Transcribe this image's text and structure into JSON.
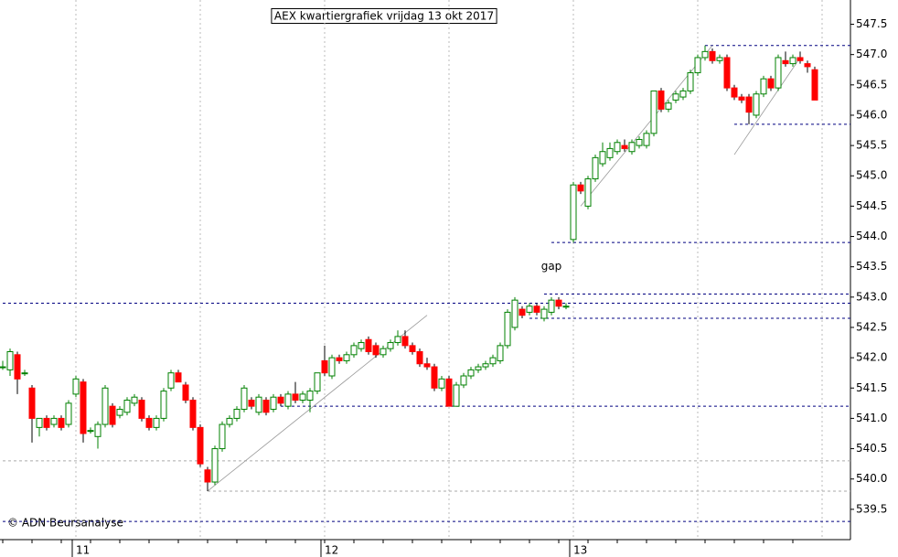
{
  "chart_data": {
    "type": "candlestick",
    "title": "AEX kwartiergrafiek vrijdag 13 okt 2017",
    "credit": "© ADN Beursanalyse",
    "annotations": [
      {
        "text": "gap",
        "x": 75,
        "y": 543.5
      }
    ],
    "up_color": "#008000",
    "down_color": "#ff0000",
    "categories": [
      null,
      null,
      null,
      null,
      null,
      null,
      null,
      null,
      null,
      null,
      "11",
      null,
      null,
      null,
      null,
      null,
      null,
      null,
      null,
      null,
      null,
      null,
      null,
      null,
      null,
      null,
      null,
      null,
      null,
      null,
      null,
      null,
      null,
      null,
      null,
      null,
      null,
      null,
      null,
      null,
      null,
      null,
      null,
      null,
      "12",
      null,
      null,
      null,
      null,
      null,
      null,
      null,
      null,
      null,
      null,
      null,
      null,
      null,
      null,
      null,
      null,
      null,
      null,
      null,
      null,
      null,
      null,
      null,
      null,
      null,
      null,
      null,
      null,
      null,
      null,
      null,
      null,
      null,
      "13",
      null,
      null,
      null,
      null,
      null,
      null,
      null,
      null,
      null,
      null,
      null,
      null,
      null,
      null,
      null,
      null,
      null,
      null,
      null,
      null,
      null,
      null,
      null,
      null,
      null,
      null,
      null,
      null,
      null,
      null,
      null,
      null,
      null
    ],
    "candles": [
      [
        541.85,
        541.95,
        541.8,
        541.85
      ],
      [
        541.8,
        542.15,
        541.7,
        542.1
      ],
      [
        542.05,
        542.1,
        541.4,
        541.65
      ],
      [
        541.75,
        541.8,
        541.7,
        541.75
      ],
      [
        541.5,
        541.55,
        540.6,
        541.0
      ],
      [
        540.85,
        541.0,
        540.7,
        541.0
      ],
      [
        541.0,
        541.05,
        540.8,
        540.85
      ],
      [
        540.9,
        541.05,
        540.85,
        541.0
      ],
      [
        541.0,
        541.05,
        540.8,
        540.85
      ],
      [
        540.9,
        541.3,
        540.85,
        541.25
      ],
      [
        541.4,
        541.7,
        541.35,
        541.65
      ],
      [
        541.6,
        541.65,
        540.6,
        540.75
      ],
      [
        540.8,
        540.85,
        540.75,
        540.8
      ],
      [
        540.7,
        540.95,
        540.5,
        540.9
      ],
      [
        540.9,
        541.55,
        540.85,
        541.5
      ],
      [
        541.2,
        541.25,
        540.85,
        540.9
      ],
      [
        541.05,
        541.2,
        541.0,
        541.15
      ],
      [
        541.1,
        541.35,
        541.05,
        541.3
      ],
      [
        541.25,
        541.4,
        541.2,
        541.35
      ],
      [
        541.3,
        541.35,
        540.95,
        541.0
      ],
      [
        541.0,
        541.05,
        540.8,
        540.85
      ],
      [
        540.85,
        541.05,
        540.8,
        541.0
      ],
      [
        541.0,
        541.5,
        540.95,
        541.45
      ],
      [
        541.5,
        541.8,
        541.45,
        541.75
      ],
      [
        541.75,
        541.8,
        541.6,
        541.6
      ],
      [
        541.55,
        541.6,
        541.25,
        541.3
      ],
      [
        541.3,
        541.35,
        540.8,
        540.85
      ],
      [
        540.85,
        540.9,
        540.2,
        540.25
      ],
      [
        540.15,
        540.2,
        539.8,
        539.95
      ],
      [
        539.95,
        540.55,
        539.9,
        540.5
      ],
      [
        540.5,
        540.95,
        540.45,
        540.9
      ],
      [
        540.9,
        541.05,
        540.85,
        541.0
      ],
      [
        541.0,
        541.2,
        540.95,
        541.15
      ],
      [
        541.15,
        541.55,
        541.1,
        541.5
      ],
      [
        541.3,
        541.35,
        541.15,
        541.2
      ],
      [
        541.1,
        541.4,
        541.05,
        541.35
      ],
      [
        541.3,
        541.35,
        541.05,
        541.1
      ],
      [
        541.15,
        541.4,
        541.1,
        541.35
      ],
      [
        541.35,
        541.4,
        541.2,
        541.25
      ],
      [
        541.2,
        541.45,
        541.15,
        541.4
      ],
      [
        541.4,
        541.6,
        541.25,
        541.3
      ],
      [
        541.3,
        541.45,
        541.25,
        541.4
      ],
      [
        541.3,
        541.5,
        541.1,
        541.45
      ],
      [
        541.45,
        541.75,
        541.4,
        541.75
      ],
      [
        541.95,
        542.2,
        541.7,
        541.75
      ],
      [
        541.7,
        542.05,
        541.65,
        542.0
      ],
      [
        542.0,
        542.05,
        541.9,
        541.95
      ],
      [
        541.95,
        542.1,
        541.9,
        542.05
      ],
      [
        542.05,
        542.25,
        542.0,
        542.2
      ],
      [
        542.15,
        542.3,
        542.1,
        542.25
      ],
      [
        542.3,
        542.35,
        542.05,
        542.1
      ],
      [
        542.2,
        542.25,
        542.0,
        542.05
      ],
      [
        542.05,
        542.2,
        542.0,
        542.15
      ],
      [
        542.15,
        542.3,
        542.1,
        542.25
      ],
      [
        542.25,
        542.45,
        542.2,
        542.35
      ],
      [
        542.35,
        542.45,
        542.15,
        542.2
      ],
      [
        542.2,
        542.25,
        542.05,
        542.1
      ],
      [
        542.1,
        542.15,
        541.85,
        541.9
      ],
      [
        541.9,
        542.0,
        541.8,
        541.85
      ],
      [
        541.85,
        541.9,
        541.45,
        541.5
      ],
      [
        541.5,
        541.7,
        541.45,
        541.65
      ],
      [
        541.65,
        541.7,
        541.2,
        541.2
      ],
      [
        541.2,
        541.6,
        541.2,
        541.55
      ],
      [
        541.55,
        541.75,
        541.5,
        541.7
      ],
      [
        541.7,
        541.85,
        541.65,
        541.8
      ],
      [
        541.8,
        541.9,
        541.75,
        541.85
      ],
      [
        541.85,
        541.95,
        541.8,
        541.9
      ],
      [
        541.9,
        542.05,
        541.85,
        542.0
      ],
      [
        541.95,
        542.25,
        541.9,
        542.2
      ],
      [
        542.2,
        542.8,
        542.15,
        542.75
      ],
      [
        542.5,
        543.0,
        542.45,
        542.95
      ],
      [
        542.8,
        542.85,
        542.65,
        542.7
      ],
      [
        542.75,
        542.9,
        542.7,
        542.85
      ],
      [
        542.85,
        542.9,
        542.7,
        542.75
      ],
      [
        542.65,
        542.85,
        542.6,
        542.8
      ],
      [
        542.75,
        543.0,
        542.7,
        542.95
      ],
      [
        542.95,
        543.0,
        542.8,
        542.85
      ],
      [
        542.85,
        542.9,
        542.8,
        542.85
      ],
      [
        543.95,
        544.9,
        543.9,
        544.85
      ],
      [
        544.85,
        544.9,
        544.7,
        544.75
      ],
      [
        544.5,
        545.0,
        544.45,
        544.95
      ],
      [
        544.95,
        545.35,
        544.9,
        545.3
      ],
      [
        545.2,
        545.55,
        545.15,
        545.4
      ],
      [
        545.3,
        545.55,
        545.25,
        545.45
      ],
      [
        545.4,
        545.6,
        545.35,
        545.55
      ],
      [
        545.5,
        545.6,
        545.4,
        545.45
      ],
      [
        545.4,
        545.6,
        545.35,
        545.55
      ],
      [
        545.5,
        545.65,
        545.45,
        545.6
      ],
      [
        545.5,
        545.75,
        545.45,
        545.7
      ],
      [
        545.7,
        546.4,
        545.65,
        546.4
      ],
      [
        546.4,
        546.45,
        546.05,
        546.1
      ],
      [
        546.1,
        546.25,
        546.05,
        546.2
      ],
      [
        546.25,
        546.4,
        546.2,
        546.35
      ],
      [
        546.3,
        546.45,
        546.25,
        546.4
      ],
      [
        546.4,
        546.75,
        546.35,
        546.7
      ],
      [
        546.7,
        547.0,
        546.65,
        546.95
      ],
      [
        546.95,
        547.15,
        546.9,
        547.05
      ],
      [
        547.05,
        547.1,
        546.85,
        546.9
      ],
      [
        546.9,
        547.0,
        546.85,
        546.95
      ],
      [
        546.95,
        547.0,
        546.4,
        546.45
      ],
      [
        546.45,
        546.5,
        546.25,
        546.3
      ],
      [
        546.3,
        546.35,
        546.2,
        546.25
      ],
      [
        546.3,
        546.35,
        545.85,
        546.05
      ],
      [
        546.0,
        546.4,
        545.95,
        546.35
      ],
      [
        546.35,
        546.65,
        546.3,
        546.6
      ],
      [
        546.6,
        546.65,
        546.4,
        546.45
      ],
      [
        546.45,
        547.0,
        546.4,
        546.95
      ],
      [
        546.9,
        547.05,
        546.8,
        546.85
      ],
      [
        546.85,
        547.0,
        546.8,
        546.95
      ],
      [
        546.95,
        547.05,
        546.85,
        546.9
      ],
      [
        546.85,
        546.9,
        546.7,
        546.8
      ],
      [
        546.75,
        546.8,
        546.25,
        546.25
      ]
    ],
    "hlines": [
      {
        "value": 547.15,
        "from": 96,
        "color": "#000080"
      },
      {
        "value": 545.85,
        "from": 100,
        "color": "#000080"
      },
      {
        "value": 543.9,
        "from": 75,
        "color": "#000080"
      },
      {
        "value": 543.05,
        "from": 74,
        "color": "#000080"
      },
      {
        "value": 542.9,
        "from": 0,
        "color": "#000080"
      },
      {
        "value": 542.65,
        "from": 72,
        "color": "#000080"
      },
      {
        "value": 541.2,
        "from": 38,
        "color": "#000080"
      },
      {
        "value": 539.3,
        "from": 0,
        "color": "#000080"
      },
      {
        "value": 540.3,
        "from": 0,
        "color": "#aaaaaa"
      },
      {
        "value": 539.8,
        "from": 28,
        "color": "#aaaaaa"
      }
    ],
    "trendlines": [
      {
        "x": [
          28,
          58
        ],
        "y": [
          539.8,
          542.7
        ]
      },
      {
        "x": [
          79,
          97
        ],
        "y": [
          544.5,
          547.15
        ]
      },
      {
        "x": [
          100,
          109
        ],
        "y": [
          545.35,
          546.95
        ]
      }
    ],
    "ylim": [
      539.0,
      547.9
    ],
    "yticks": [
      {
        "value": 539.5,
        "label": "539.5"
      },
      {
        "value": 540,
        "label": "540.0"
      },
      {
        "value": 540.5,
        "label": "540.5"
      },
      {
        "value": 541,
        "label": "541.0"
      },
      {
        "value": 541.5,
        "label": "541.5"
      },
      {
        "value": 542,
        "label": "542.0"
      },
      {
        "value": 542.5,
        "label": "542.5"
      },
      {
        "value": 543,
        "label": "543.0"
      },
      {
        "value": 543.5,
        "label": "543.5"
      },
      {
        "value": 544,
        "label": "544.0"
      },
      {
        "value": 544.5,
        "label": "544.5"
      },
      {
        "value": 545,
        "label": "545.0"
      },
      {
        "value": 545.5,
        "label": "545.5"
      },
      {
        "value": 546,
        "label": "546.0"
      },
      {
        "value": 546.5,
        "label": "546.5"
      },
      {
        "value": 547,
        "label": "547.0"
      },
      {
        "value": 547.5,
        "label": "547.5"
      }
    ]
  }
}
